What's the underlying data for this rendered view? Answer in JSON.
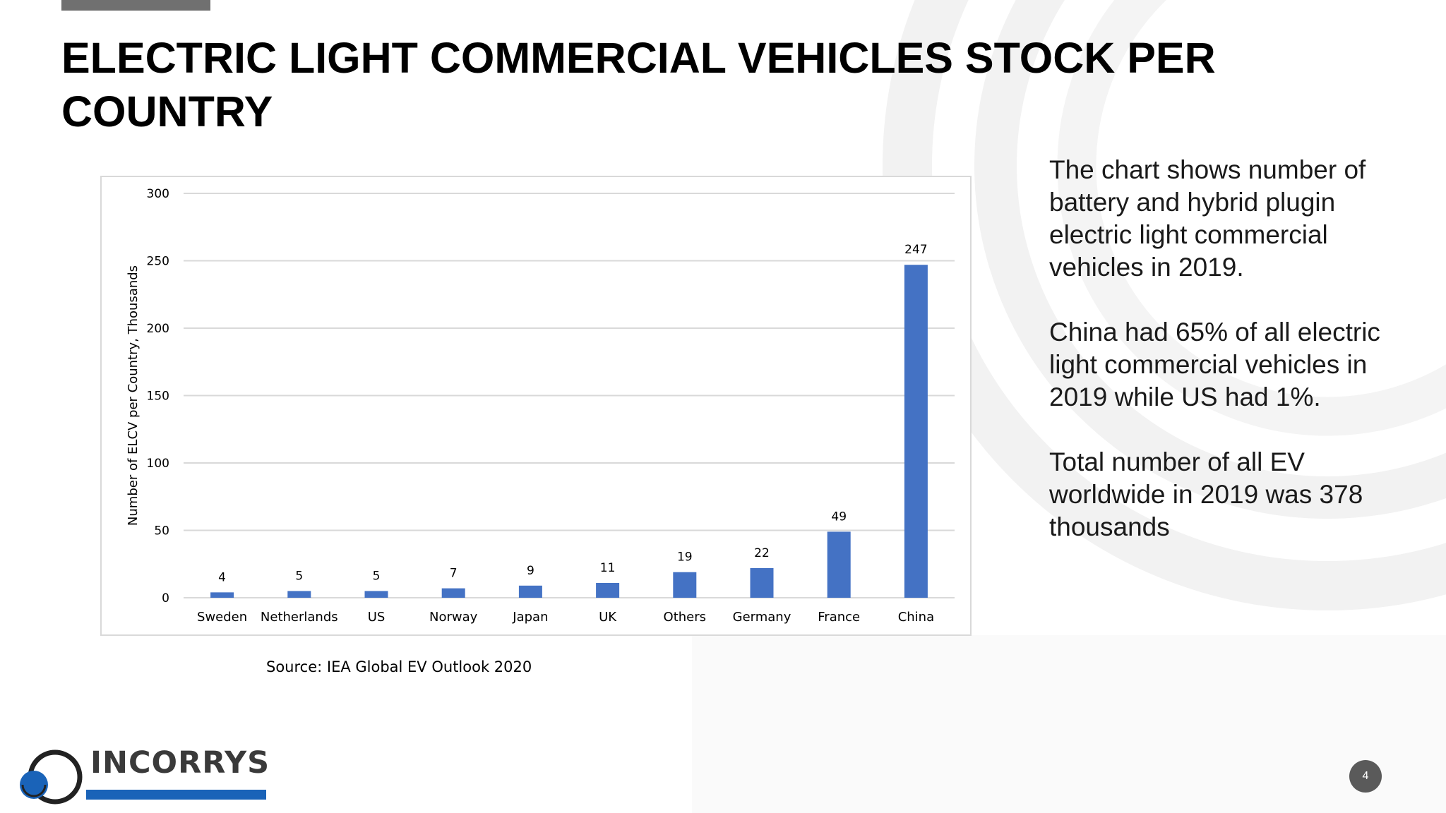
{
  "slide": {
    "title": "ELECTRIC LIGHT COMMERCIAL VEHICLES STOCK PER COUNTRY",
    "source": "Source: IEA Global EV Outlook 2020",
    "paragraphs": [
      "The chart shows number of battery and hybrid plugin electric light commercial vehicles in 2019.",
      "China had 65% of all electric light commercial vehicles in 2019 while US had 1%.",
      "Total number of all EV worldwide in 2019 was 378 thousands"
    ],
    "page_number": "4"
  },
  "logo": {
    "text": "INCORRYS",
    "brand_color": "#1a63b8"
  },
  "colors": {
    "bar": "#4472c4",
    "grid": "#d9d9d9"
  },
  "chart_data": {
    "type": "bar",
    "categories": [
      "Sweden",
      "Netherlands",
      "US",
      "Norway",
      "Japan",
      "UK",
      "Others",
      "Germany",
      "France",
      "China"
    ],
    "values": [
      4,
      5,
      5,
      7,
      9,
      11,
      19,
      22,
      49,
      247
    ],
    "ylabel": "Number  of ELCV per Country, Thousands",
    "ylim": [
      0,
      300
    ],
    "yticks": [
      0,
      50,
      100,
      150,
      200,
      250,
      300
    ],
    "grid": true,
    "legend": "none",
    "data_labels": true
  }
}
